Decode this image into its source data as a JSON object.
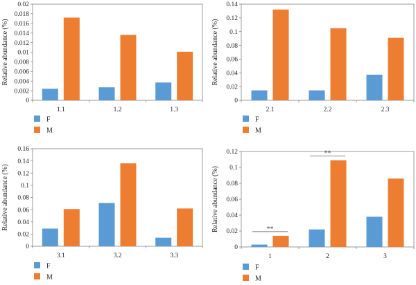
{
  "colors": {
    "F": "#5b9bd5",
    "M": "#ed7d31",
    "axis": "#7f7f7f",
    "significance": "#555555"
  },
  "legend": [
    {
      "key": "F",
      "label": "F"
    },
    {
      "key": "M",
      "label": "M"
    }
  ],
  "chart_data": [
    {
      "type": "bar",
      "categories": [
        "1.1",
        "1.2",
        "1.3"
      ],
      "series": [
        {
          "name": "F",
          "values": [
            0.0024,
            0.0027,
            0.0037
          ]
        },
        {
          "name": "M",
          "values": [
            0.0172,
            0.0136,
            0.0101
          ]
        }
      ],
      "ylabel": "Relative abundance (%)",
      "ylim": [
        0,
        0.02
      ],
      "yticks": [
        0,
        0.002,
        0.004,
        0.006,
        0.008,
        0.01,
        0.012,
        0.014,
        0.016,
        0.018,
        0.02
      ],
      "ytick_labels": [
        "0",
        "0.002",
        "0.004",
        "0.006",
        "0.008",
        "0.01",
        "0.012",
        "0.014",
        "0.016",
        "0.018",
        "0.02"
      ],
      "legend_position": "bottom-left"
    },
    {
      "type": "bar",
      "categories": [
        "2.1",
        "2.2",
        "2.3"
      ],
      "series": [
        {
          "name": "F",
          "values": [
            0.0145,
            0.0145,
            0.0373
          ]
        },
        {
          "name": "M",
          "values": [
            0.1322,
            0.105,
            0.091
          ]
        }
      ],
      "ylabel": "Relative abundance (%)",
      "ylim": [
        0,
        0.14
      ],
      "yticks": [
        0,
        0.02,
        0.04,
        0.06,
        0.08,
        0.1,
        0.12,
        0.14
      ],
      "ytick_labels": [
        "0",
        "0.02",
        "0.04",
        "0.06",
        "0.08",
        "0.1",
        "0.12",
        "0.14"
      ],
      "legend_position": "bottom-left"
    },
    {
      "type": "bar",
      "categories": [
        "3.1",
        "3.2",
        "3.3"
      ],
      "series": [
        {
          "name": "F",
          "values": [
            0.029,
            0.071,
            0.014
          ]
        },
        {
          "name": "M",
          "values": [
            0.061,
            0.136,
            0.062
          ]
        }
      ],
      "ylabel": "Relative abundance (%)",
      "ylim": [
        0,
        0.16
      ],
      "yticks": [
        0,
        0.02,
        0.04,
        0.06,
        0.08,
        0.1,
        0.12,
        0.14,
        0.16
      ],
      "ytick_labels": [
        "0",
        "0.02",
        "0.04",
        "0.06",
        "0.08",
        "0.1",
        "0.12",
        "0.14",
        "0.16"
      ],
      "legend_position": "bottom-left"
    },
    {
      "type": "bar",
      "categories": [
        "1",
        "2",
        "3"
      ],
      "series": [
        {
          "name": "F",
          "values": [
            0.003,
            0.022,
            0.038
          ]
        },
        {
          "name": "M",
          "values": [
            0.014,
            0.109,
            0.086
          ]
        }
      ],
      "ylabel": "Relative abundance (%)",
      "ylim": [
        0,
        0.12
      ],
      "yticks": [
        0,
        0.02,
        0.04,
        0.06,
        0.08,
        0.1,
        0.12
      ],
      "ytick_labels": [
        "0",
        "0.02",
        "0.04",
        "0.06",
        "0.08",
        "0.1",
        "0.12"
      ],
      "significance": [
        {
          "category": "1",
          "label": "**"
        },
        {
          "category": "2",
          "label": "**"
        }
      ],
      "legend_position": "bottom-left"
    }
  ]
}
